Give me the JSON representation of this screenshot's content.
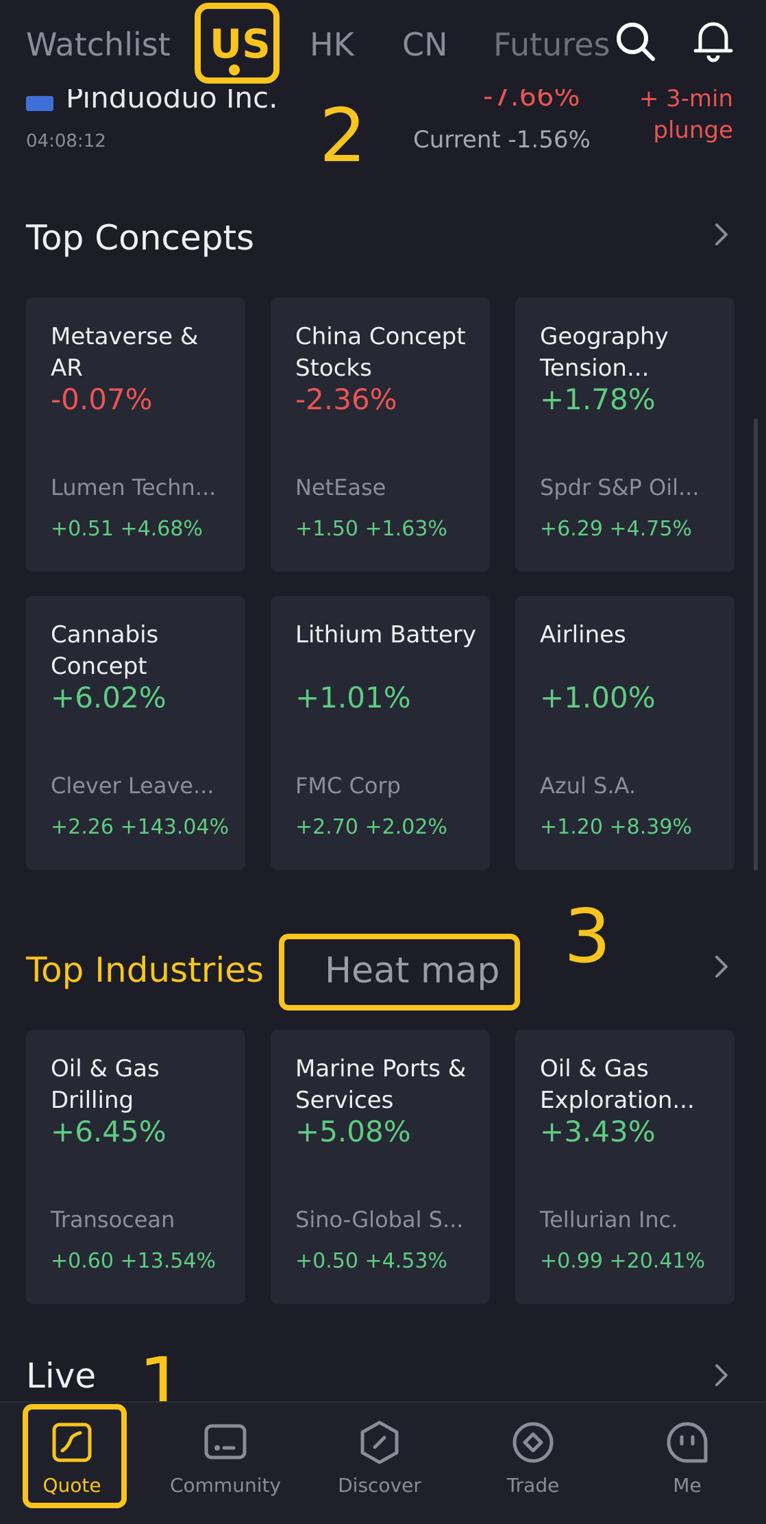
{
  "topnav": {
    "tabs": [
      "Watchlist",
      "US",
      "HK",
      "CN",
      "Futures"
    ],
    "active": "US"
  },
  "stock": {
    "name": "Pinduoduo Inc.",
    "time": "04:08:12",
    "change": "-7.66%",
    "current": "Current -1.56%",
    "alert_line1": "+ 3-min",
    "alert_line2": "plunge"
  },
  "annotations": {
    "n1": "1",
    "n2": "2",
    "n3": "3"
  },
  "concepts": {
    "title": "Top Concepts",
    "cards": [
      {
        "name": "Metaverse & AR",
        "pct": "-0.07%",
        "dir": "neg",
        "stock": "Lumen Techn...",
        "move": "+0.51 +4.68%"
      },
      {
        "name": "China Concept Stocks",
        "pct": "-2.36%",
        "dir": "neg",
        "stock": "NetEase",
        "move": "+1.50 +1.63%"
      },
      {
        "name": "Geography Tension...",
        "pct": "+1.78%",
        "dir": "pos",
        "stock": "Spdr S&P Oil...",
        "move": "+6.29 +4.75%"
      },
      {
        "name": "Cannabis Concept",
        "pct": "+6.02%",
        "dir": "pos",
        "stock": "Clever Leave...",
        "move": "+2.26 +143.04%"
      },
      {
        "name": "Lithium Battery",
        "pct": "+1.01%",
        "dir": "pos",
        "stock": "FMC Corp",
        "move": "+2.70 +2.02%"
      },
      {
        "name": "Airlines",
        "pct": "+1.00%",
        "dir": "pos",
        "stock": "Azul S.A.",
        "move": "+1.20 +8.39%"
      }
    ]
  },
  "industries": {
    "title": "Top Industries",
    "heatmap_label": "Heat map",
    "cards": [
      {
        "name": "Oil & Gas Drilling",
        "pct": "+6.45%",
        "dir": "pos",
        "stock": "Transocean",
        "move": "+0.60 +13.54%"
      },
      {
        "name": "Marine Ports & Services",
        "pct": "+5.08%",
        "dir": "pos",
        "stock": "Sino-Global S...",
        "move": "+0.50 +4.53%"
      },
      {
        "name": "Oil & Gas Exploration...",
        "pct": "+3.43%",
        "dir": "pos",
        "stock": "Tellurian Inc.",
        "move": "+0.99 +20.41%"
      }
    ]
  },
  "live": {
    "title": "Live"
  },
  "bottomnav": {
    "items": [
      {
        "label": "Quote",
        "icon": "quote-icon"
      },
      {
        "label": "Community",
        "icon": "community-icon"
      },
      {
        "label": "Discover",
        "icon": "discover-icon"
      },
      {
        "label": "Trade",
        "icon": "trade-icon"
      },
      {
        "label": "Me",
        "icon": "me-icon"
      }
    ],
    "active": "Quote"
  },
  "colors": {
    "accent": "#f7c51e",
    "up": "#5fcc83",
    "down": "#ea5455",
    "bg": "#1c1d26",
    "card": "#262833"
  }
}
